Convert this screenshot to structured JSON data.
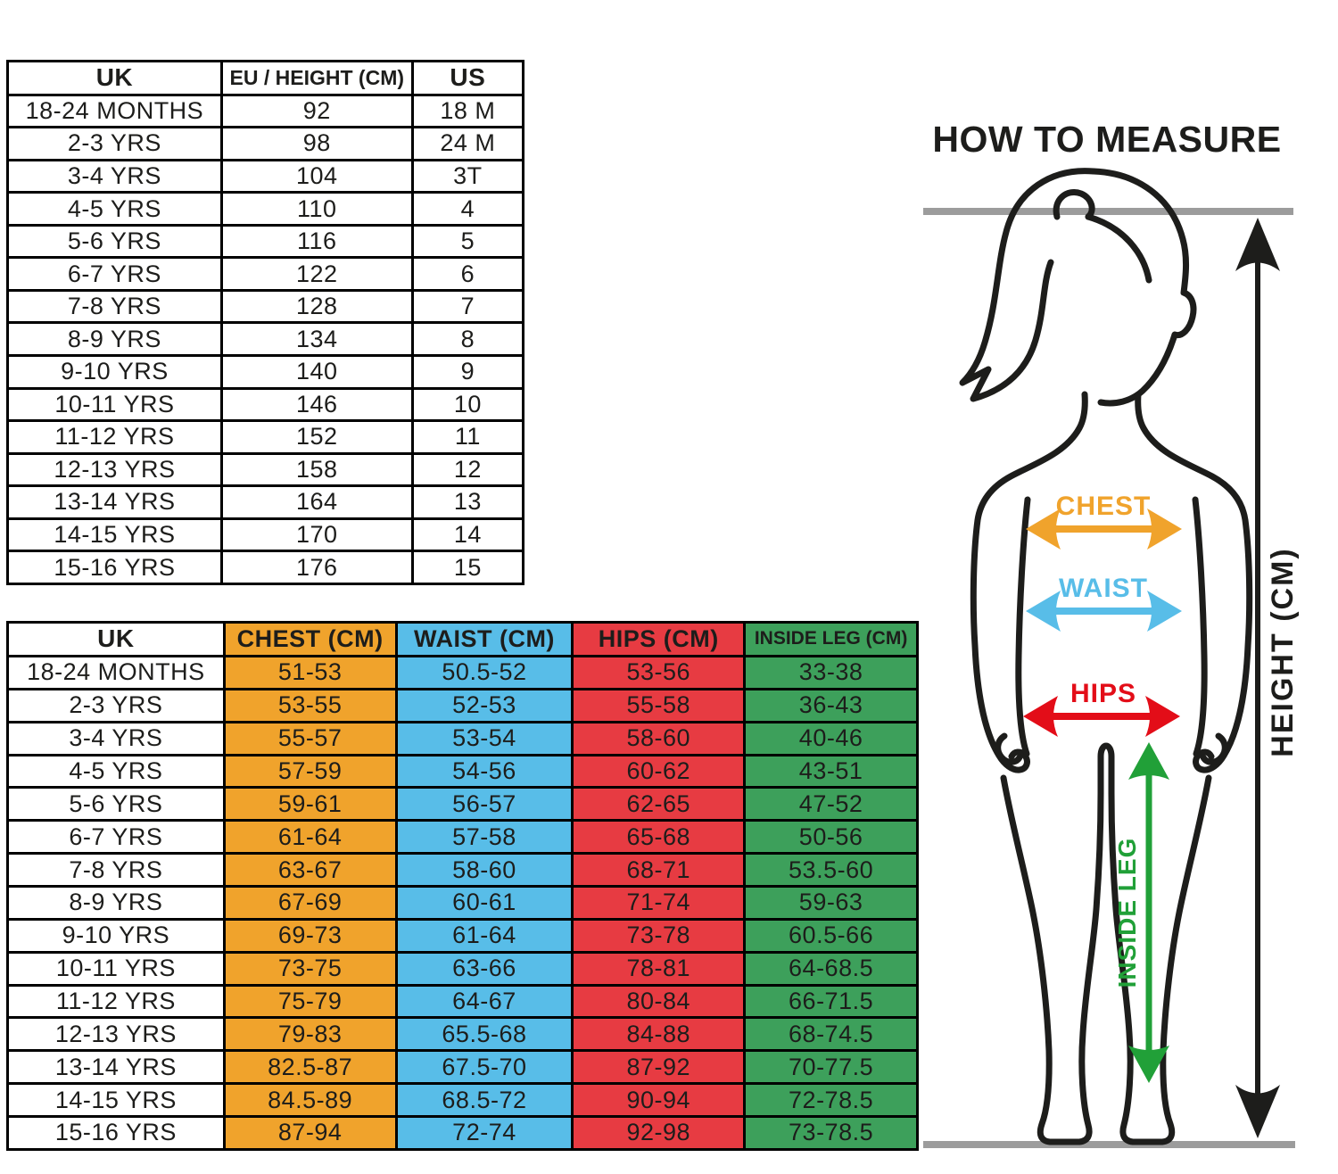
{
  "conversion_table": {
    "columns": [
      {
        "label": "UK"
      },
      {
        "label": "EU / HEIGHT (CM)"
      },
      {
        "label": "US"
      }
    ],
    "rows": [
      [
        "18-24 MONTHS",
        "92",
        "18 M"
      ],
      [
        "2-3 YRS",
        "98",
        "24 M"
      ],
      [
        "3-4 YRS",
        "104",
        "3T"
      ],
      [
        "4-5 YRS",
        "110",
        "4"
      ],
      [
        "5-6 YRS",
        "116",
        "5"
      ],
      [
        "6-7 YRS",
        "122",
        "6"
      ],
      [
        "7-8 YRS",
        "128",
        "7"
      ],
      [
        "8-9 YRS",
        "134",
        "8"
      ],
      [
        "9-10 YRS",
        "140",
        "9"
      ],
      [
        "10-11 YRS",
        "146",
        "10"
      ],
      [
        "11-12 YRS",
        "152",
        "11"
      ],
      [
        "12-13 YRS",
        "158",
        "12"
      ],
      [
        "13-14 YRS",
        "164",
        "13"
      ],
      [
        "14-15 YRS",
        "170",
        "14"
      ],
      [
        "15-16 YRS",
        "176",
        "15"
      ]
    ]
  },
  "measurements_table": {
    "columns": [
      {
        "label": "UK",
        "color": ""
      },
      {
        "label": "CHEST (CM)",
        "color": "#f0a32c"
      },
      {
        "label": "WAIST (CM)",
        "color": "#58bde8"
      },
      {
        "label": "HIPS (CM)",
        "color": "#e73b42"
      },
      {
        "label": "INSIDE LEG (CM)",
        "color": "#3da05b"
      }
    ],
    "rows": [
      [
        "18-24 MONTHS",
        "51-53",
        "50.5-52",
        "53-56",
        "33-38"
      ],
      [
        "2-3 YRS",
        "53-55",
        "52-53",
        "55-58",
        "36-43"
      ],
      [
        "3-4 YRS",
        "55-57",
        "53-54",
        "58-60",
        "40-46"
      ],
      [
        "4-5 YRS",
        "57-59",
        "54-56",
        "60-62",
        "43-51"
      ],
      [
        "5-6 YRS",
        "59-61",
        "56-57",
        "62-65",
        "47-52"
      ],
      [
        "6-7 YRS",
        "61-64",
        "57-58",
        "65-68",
        "50-56"
      ],
      [
        "7-8 YRS",
        "63-67",
        "58-60",
        "68-71",
        "53.5-60"
      ],
      [
        "8-9 YRS",
        "67-69",
        "60-61",
        "71-74",
        "59-63"
      ],
      [
        "9-10 YRS",
        "69-73",
        "61-64",
        "73-78",
        "60.5-66"
      ],
      [
        "10-11 YRS",
        "73-75",
        "63-66",
        "78-81",
        "64-68.5"
      ],
      [
        "11-12 YRS",
        "75-79",
        "64-67",
        "80-84",
        "66-71.5"
      ],
      [
        "12-13 YRS",
        "79-83",
        "65.5-68",
        "84-88",
        "68-74.5"
      ],
      [
        "13-14 YRS",
        "82.5-87",
        "67.5-70",
        "87-92",
        "70-77.5"
      ],
      [
        "14-15 YRS",
        "84.5-89",
        "68.5-72",
        "90-94",
        "72-78.5"
      ],
      [
        "15-16 YRS",
        "87-94",
        "72-74",
        "92-98",
        "73-78.5"
      ]
    ]
  },
  "figure": {
    "title": "HOW TO MEASURE",
    "labels": {
      "chest": "CHEST",
      "waist": "WAIST",
      "hips": "HIPS",
      "inside_leg": "INSIDE LEG",
      "height": "HEIGHT (CM)"
    },
    "colors": {
      "chest": "#f0a32c",
      "waist": "#58bde8",
      "hips": "#e30d18",
      "inside_leg": "#21a038",
      "height": "#1d1d1b",
      "outline": "#1d1d1b",
      "guide_line": "#9c9c9c"
    }
  }
}
